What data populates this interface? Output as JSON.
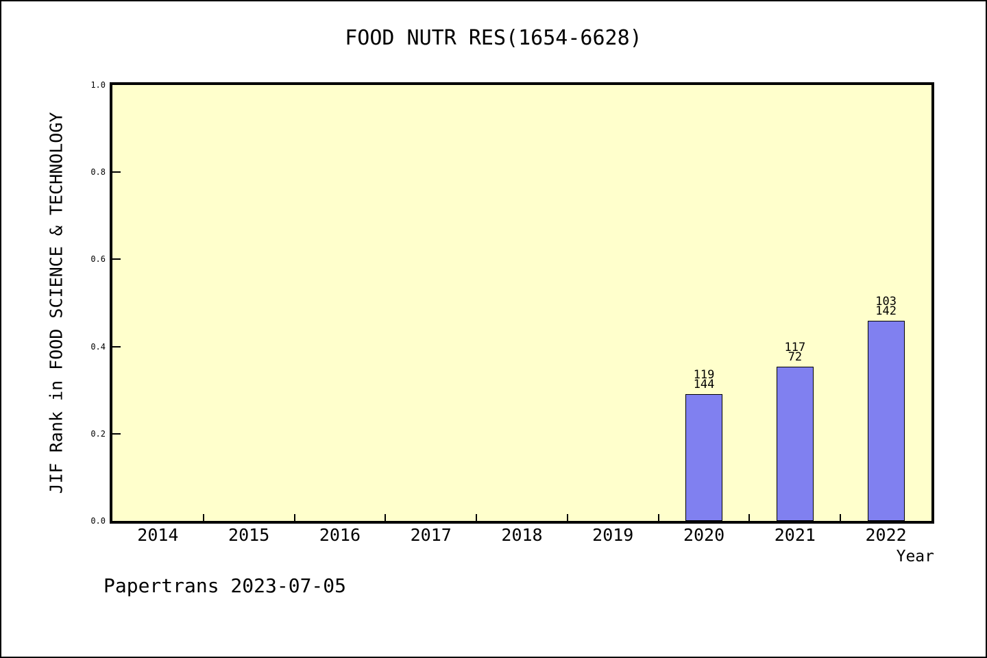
{
  "chart_data": {
    "type": "bar",
    "title": "FOOD NUTR RES(1654-6628)",
    "xlabel": "Year",
    "ylabel": "JIF Rank in FOOD SCIENCE & TECHNOLOGY",
    "categories": [
      "2014",
      "2015",
      "2016",
      "2017",
      "2018",
      "2019",
      "2020",
      "2021",
      "2022"
    ],
    "values": [
      null,
      null,
      null,
      null,
      null,
      null,
      0.291,
      0.354,
      0.459
    ],
    "bar_labels": [
      null,
      null,
      null,
      null,
      null,
      null,
      "119\n144",
      "117\n72",
      "103\n142"
    ],
    "ylim": [
      0,
      1
    ],
    "yticks": [
      "0.0",
      "0.2",
      "0.4",
      "0.6",
      "0.8",
      "1.0"
    ],
    "grid": "off",
    "legend": "none",
    "plot_bg_color": "#FFFFCC",
    "bar_color": "#8080F0",
    "axis_color": "#000000"
  },
  "footer": {
    "text": "Papertrans 2023-07-05"
  }
}
